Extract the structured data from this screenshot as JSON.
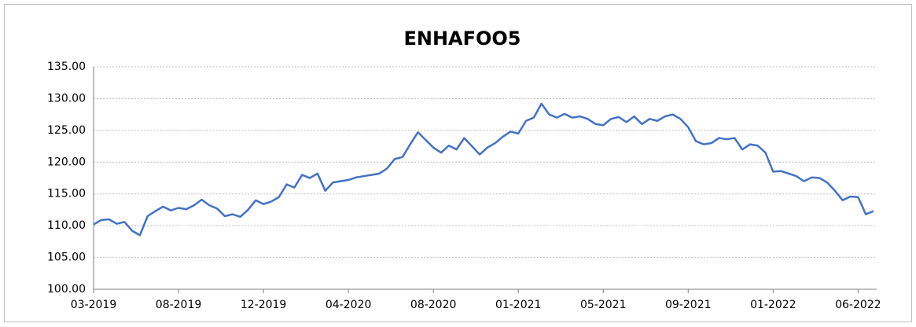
{
  "chart_data": {
    "type": "line",
    "title": "ENHAFOO5",
    "categories": [
      "03-2019",
      null,
      null,
      null,
      null,
      null,
      null,
      null,
      null,
      null,
      null,
      "08-2019",
      null,
      null,
      null,
      null,
      null,
      null,
      null,
      null,
      null,
      null,
      "12-2019",
      null,
      null,
      null,
      null,
      null,
      null,
      null,
      null,
      null,
      null,
      "04-2020",
      null,
      null,
      null,
      null,
      null,
      null,
      null,
      null,
      null,
      null,
      "08-2020",
      null,
      null,
      null,
      null,
      null,
      null,
      null,
      null,
      null,
      null,
      "01-2021",
      null,
      null,
      null,
      null,
      null,
      null,
      null,
      null,
      null,
      null,
      "05-2021",
      null,
      null,
      null,
      null,
      null,
      null,
      null,
      null,
      null,
      null,
      "09-2021",
      null,
      null,
      null,
      null,
      null,
      null,
      null,
      null,
      null,
      null,
      "01-2022",
      null,
      null,
      null,
      null,
      null,
      null,
      null,
      null,
      null,
      null,
      "06-2022",
      null,
      null
    ],
    "values": [
      110.2,
      110.9,
      111.0,
      110.3,
      110.6,
      109.2,
      108.5,
      111.5,
      112.3,
      113.0,
      112.4,
      112.8,
      112.6,
      113.2,
      114.1,
      113.2,
      112.7,
      111.5,
      111.8,
      111.4,
      112.5,
      114.0,
      113.4,
      113.8,
      114.5,
      116.5,
      116.0,
      118.0,
      117.5,
      118.2,
      115.5,
      116.8,
      117.0,
      117.2,
      117.6,
      117.8,
      118.0,
      118.2,
      119.0,
      120.5,
      120.8,
      122.8,
      124.7,
      123.5,
      122.3,
      121.5,
      122.6,
      122.0,
      123.8,
      122.5,
      121.2,
      122.3,
      123.0,
      124.0,
      124.8,
      124.5,
      126.5,
      127.0,
      129.2,
      127.5,
      127.0,
      127.6,
      127.0,
      127.2,
      126.8,
      126.0,
      125.8,
      126.8,
      127.1,
      126.3,
      127.2,
      126.0,
      126.8,
      126.5,
      127.2,
      127.5,
      126.8,
      125.5,
      123.3,
      122.8,
      123.0,
      123.8,
      123.6,
      123.8,
      122.0,
      122.8,
      122.6,
      121.5,
      118.5,
      118.6,
      118.2,
      117.8,
      117.0,
      117.6,
      117.5,
      116.8,
      115.5,
      114.0,
      114.6,
      114.5,
      111.8,
      112.3
    ],
    "color": "#4472c4",
    "ylim": [
      100,
      135
    ],
    "yticks": [
      {
        "value": 100,
        "label": "100.00"
      },
      {
        "value": 105,
        "label": "105.00"
      },
      {
        "value": 110,
        "label": "110.00"
      },
      {
        "value": 115,
        "label": "115.00"
      },
      {
        "value": 120,
        "label": "120.00"
      },
      {
        "value": 125,
        "label": "125.00"
      },
      {
        "value": 130,
        "label": "130.00"
      },
      {
        "value": 135,
        "label": "135.00"
      }
    ],
    "grid": true
  }
}
